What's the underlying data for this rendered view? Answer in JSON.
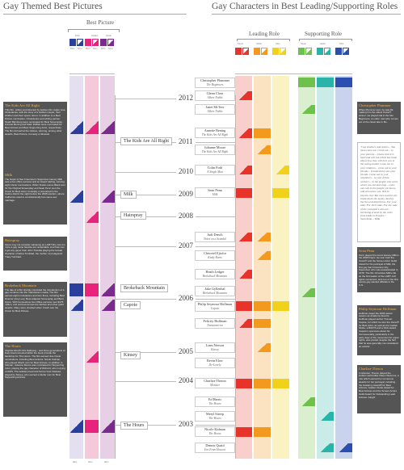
{
  "left_panel": {
    "title": "Gay Themed Best Pictures",
    "section": "Best Picture",
    "categories": [
      "PGA",
      "Golden",
      "Oscar"
    ],
    "sub_labels": [
      "Won",
      "Nom",
      "Won",
      "Nom",
      "Won",
      "Nom"
    ]
  },
  "right_panel": {
    "title": "Gay Characters in Best Leading/Supporting Roles",
    "leading_label": "Leading Role",
    "supporting_label": "Supporting Role",
    "categories": [
      "Oscar",
      "Globe",
      "SAG",
      "Oscar",
      "Globe",
      "SAG"
    ]
  },
  "years": [
    "2012",
    "2011",
    "2010",
    "2009",
    "2008",
    "2007",
    "2006",
    "2005",
    "2004",
    "2003"
  ],
  "films": [
    "The Kids Are All Right",
    "Milk",
    "Hairspray",
    "Brokeback Mountain",
    "Capote",
    "Kinsey",
    "The Hours"
  ],
  "actors": [
    {
      "name": "Christopher Plummer",
      "film": "The Beginners"
    },
    {
      "name": "Glenn Close",
      "film": "Albert Nobbs"
    },
    {
      "name": "Janet McTeer",
      "film": "Albert Nobbs"
    },
    {
      "name": "Annette Bening",
      "film": "The Kids Are All Right"
    },
    {
      "name": "Julianne Moore",
      "film": "The Kids Are All Right"
    },
    {
      "name": "Colin Firth",
      "film": "A Single Man"
    },
    {
      "name": "Sean Penn",
      "film": "Milk"
    },
    {
      "name": "Judi Dench",
      "film": "Notes on a Scandal"
    },
    {
      "name": "Chiwetel Ejiofor",
      "film": "Kinky Boots"
    },
    {
      "name": "Heath Ledger",
      "film": "Brokeback Mountain"
    },
    {
      "name": "Jake Gyllenhal",
      "film": "Brokeback Mountain"
    },
    {
      "name": "Philip Seymour Hoffman",
      "film": "Capote"
    },
    {
      "name": "Felicity Huffman",
      "film": "Transamerica"
    },
    {
      "name": "Liam Neeson",
      "film": "Kinsey"
    },
    {
      "name": "Bevin Elow",
      "film": "De-Lovely"
    },
    {
      "name": "Charlize Theron",
      "film": "Monster"
    },
    {
      "name": "Ed Harris",
      "film": "The Hours"
    },
    {
      "name": "Meryl Streep",
      "film": "The Hours"
    },
    {
      "name": "Nicole Kidman",
      "film": "The Hours"
    },
    {
      "name": "Dennis Quaid",
      "film": "Far From Heaven"
    }
  ],
  "left_notes": [
    {
      "title": "The Kids Are All Right",
      "body": "This film, written and directed by lesbian film maker Lisa Cholodenko, tells the story of a lesbian couple, their children and their sperm donor. In addition to a Best Picture nomination, Cholodenko and writing partner Stuart Blumberg were nominated for Best Screenplay. Annette Bening and Mark Ruffalo were nominated for Best Actress and Best Supporting Actor, respectively. The film did well at the Globes, winning, among other awards, Best Picture, Comedy or Musical."
    },
    {
      "title": "Milk",
      "body": "The biopic of San Francisco's Supervisor Harvey Milk was a box office success and an Award darling, winning eight Oscar nominations. Writer Dustin Lance Black won for the Original Screenplay and Sean Penn won the Oscar for Best Actor. Ironically, it premiered in the Castro district the night before the 2008 election, where California voted to constitutionally ban same-sex marriage."
    },
    {
      "title": "Hairspray",
      "body": "Some may not consider Hairspray an LGBT film, but it is more a gay camp favorite are undeniable. And how can it get any gayer than John Travolta playing the female character of Edna Turnblad, the mother of protagonist Tracy Turnblad."
    },
    {
      "title": "Brokeback Mountain",
      "body": "The tale of a film sharply coincided the introduction of a gay romance into the mainstream media. The film earned eight nominations and won three, including Best Director (Ang Lee), Best Adapted Screenplay and Best Score. With tremendous box Office success over $175 million, and success across the Globes and other guild awards. Many were shocked when Crash won the Oscar for Best Picture."
    },
    {
      "title": "The Hours",
      "body": "Virginia Woolf's Mrs Dalloway - and three generations of lives interconnected within the book provide the backdrop for The Hours. The film earned nine Oscar nominations, including Best Actress. Nicole Kidman, who played Woolf, won for Best Actress. In addition to Kidman, Julianne Moore was nominated for Supporting Actor, playing the gay character of Richard, who is dying of AIDS. The lesbian-loved and former host Clarissa, played by Streep, who earned a Globe nom for Best Supporting Actress."
    }
  ],
  "right_notes": [
    {
      "title": "Christopher Plummer",
      "body": "When Plummer won, he was 82, making him the oldest Oscar® winner. He played Hal in the film Beginners, an older man who comes out of the closet late in life."
    },
    {
      "title": "Sean Penn",
      "body": "Penn played the iconic Harvey Milk in the 2008 biopic. He won both the Oscar® and the Screen Actor Guild Award for his portrayal of Milk, the first gay San Francisco City Supervisor who was assassinated in 1978. The film chronicles Milk's life as the first leader of the LGBT civil rights movement, and one of the first openly gay elected officials in the U.S."
    },
    {
      "title": "Philip Seymour Hoffman",
      "body": "Hoffman swept the 2006 award season as Academy favorite. Hoffman played author Truman Capote, for which he won the Oscar® for Best Actor, as well as the Golden Globe, a BAFTA and a SAG award. Capote's openness about his homosexuality, particularly in the early days of the movement for equal rights, was pivotal, despite the fact that he was generally not considered an activist."
    },
    {
      "title": "Charlize Theron",
      "body": "In Monster, Theron played the lesbian serial killer Aileen Wuornos, a role which earned her numerous awards for her portrayal, including the Academy Award® for Best Actress, Golden Globe Award for Best Actress and the Screen Actors Guild Award for Outstanding Lead Actress. Aargh!"
    }
  ],
  "quote": {
    "text": "\"Gay brothers and sisters... You must come out. Come out... to your parents... I know that it is hard and will hurt them but think about how they will hurt you in the voting booth! Come out to your relatives... come out to your friends... if indeed they are your friends. Come out to your neighbors... to your fellow workers... to the people who work where you eat and shop... come out only to the people you know, and who know you. Not to anyone else. But once and for all, break down the myths, destroy the lies and distortions. For your sake. For their sake. For the sake of the youngsters who are becoming scared by the votes from Dade to Enspire.\"",
    "attribution": "Sean Penn – Milk"
  },
  "colors": {
    "pga": "#2a3e9c",
    "globe": "#e8237b",
    "oscar": "#7a2a8c",
    "red": "#e8332a",
    "orange": "#f39a1e",
    "yellow": "#f2d11b",
    "green": "#6ec14b",
    "teal": "#2ab3a8",
    "blue": "#2a4fb0",
    "note_bg": "#555555",
    "note_title": "#ffb23c"
  }
}
